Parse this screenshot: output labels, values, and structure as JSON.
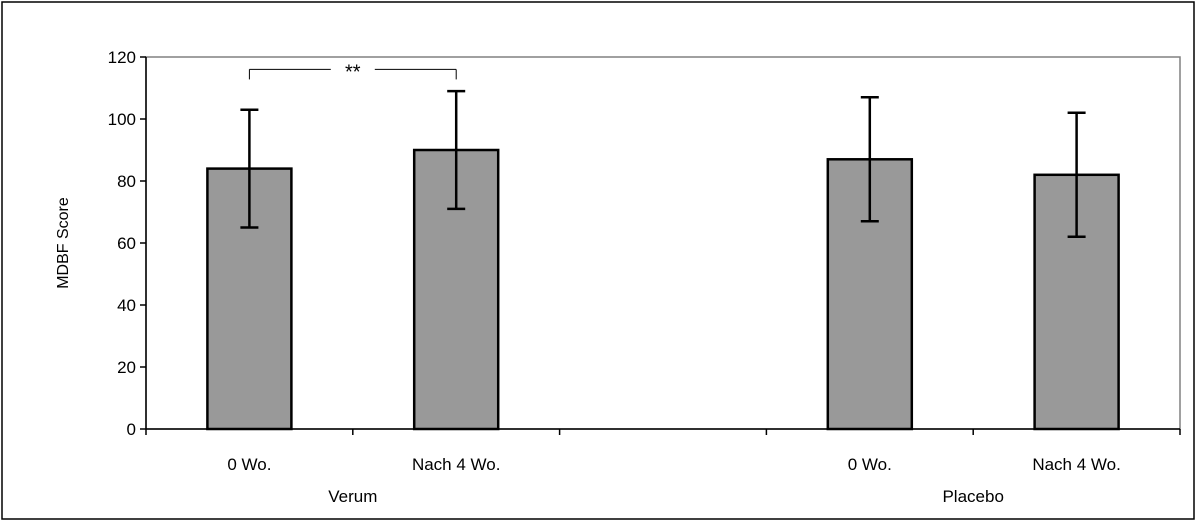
{
  "chart_data": {
    "type": "bar",
    "title": "",
    "ylabel": "MDBF Score",
    "xlabel": "",
    "ylim": [
      0,
      120
    ],
    "yticks": [
      0,
      20,
      40,
      60,
      80,
      100,
      120
    ],
    "groups": [
      {
        "label": "Verum",
        "categories": [
          "0 Wo.",
          "Nach 4 Wo."
        ]
      },
      {
        "label": "Placebo",
        "categories": [
          "0 Wo.",
          "Nach 4 Wo."
        ]
      }
    ],
    "categories": [
      "0 Wo.",
      "Nach 4 Wo.",
      "",
      "0 Wo.",
      "Nach 4 Wo."
    ],
    "values": [
      84,
      90,
      null,
      87,
      82
    ],
    "error": [
      19,
      19,
      null,
      20,
      20
    ],
    "bar_color": "#999999",
    "plot_background": "#ffffff",
    "grid": false,
    "annotations": [
      {
        "text": "**",
        "from_category": 0,
        "to_category": 1,
        "y": 116
      }
    ]
  }
}
